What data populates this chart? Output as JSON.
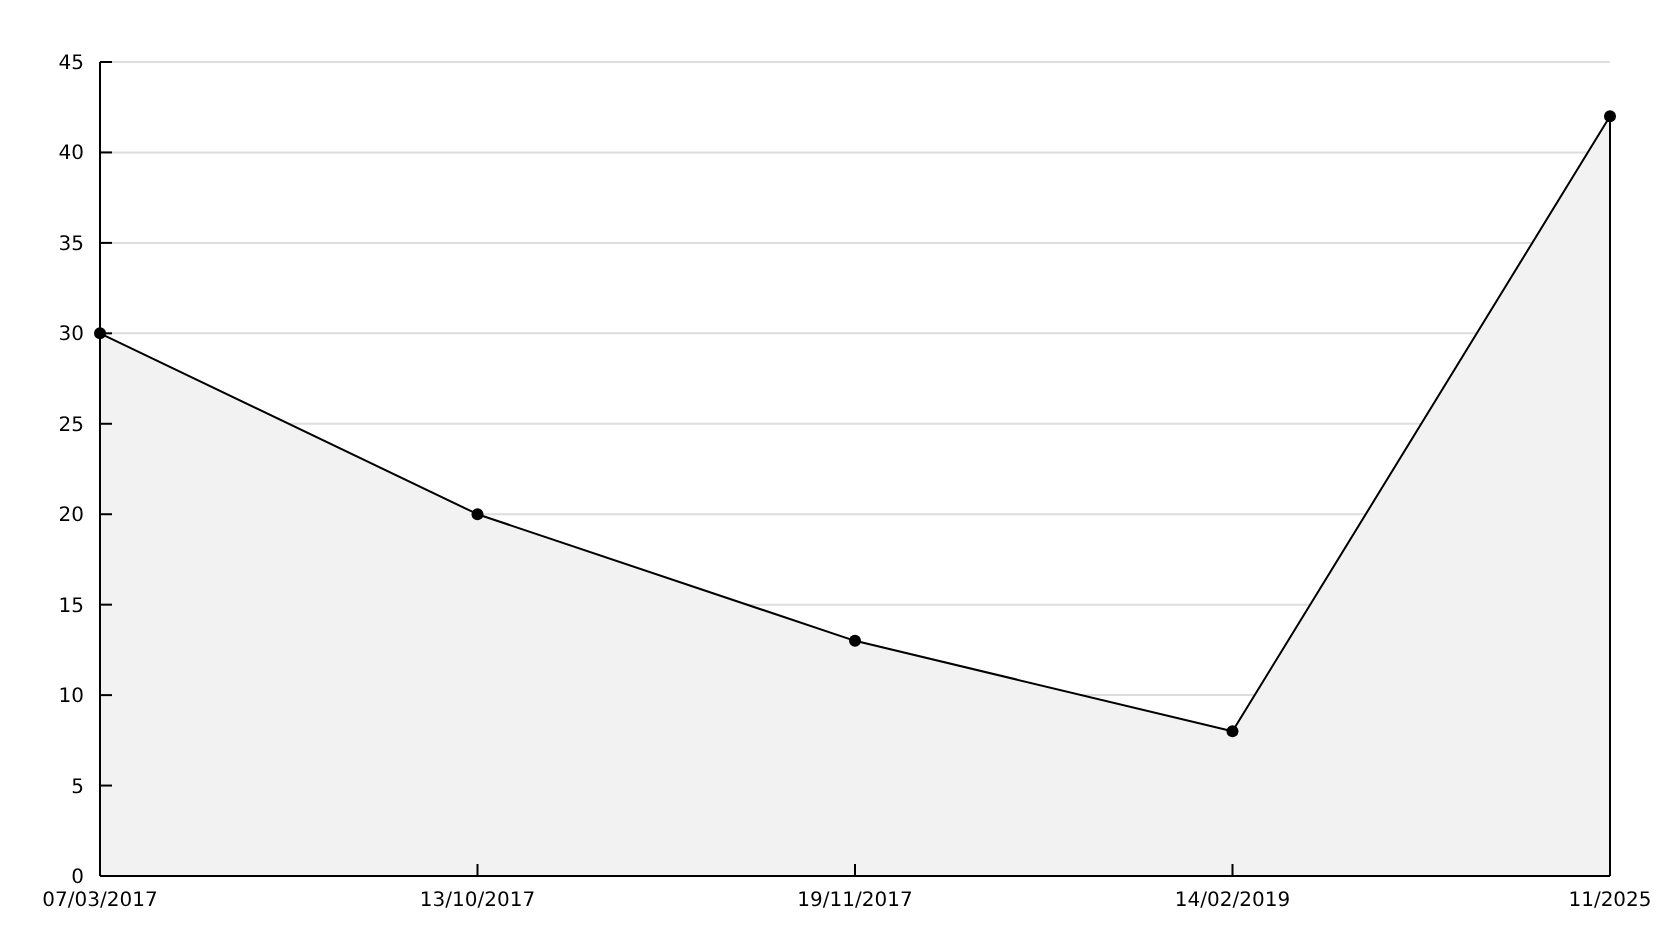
{
  "chart_data": {
    "type": "area",
    "categories": [
      "07/03/2017",
      "13/10/2017",
      "19/11/2017",
      "14/02/2019",
      "11/2025"
    ],
    "series": [
      {
        "color": "#000000",
        "values": [
          30,
          20,
          13,
          8,
          42
        ]
      }
    ],
    "ylim": [
      0,
      45
    ],
    "yticks": [
      0,
      5,
      10,
      15,
      20,
      25,
      30,
      35,
      40,
      45
    ],
    "grid": "y",
    "marker": "circle"
  }
}
